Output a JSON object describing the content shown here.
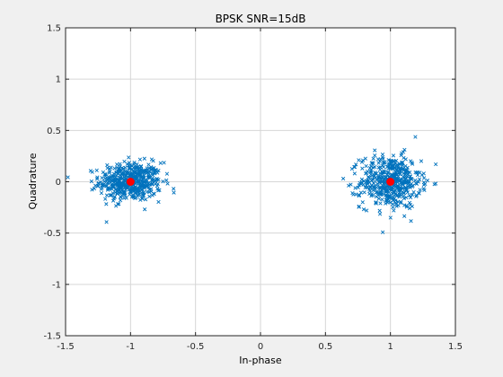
{
  "chart_data": {
    "type": "scatter",
    "title": "BPSK SNR=15dB",
    "xlabel": "In-phase",
    "ylabel": "Quadrature",
    "xlim": [
      -1.5,
      1.5
    ],
    "ylim": [
      -1.5,
      1.5
    ],
    "xticks": [
      -1.5,
      -1,
      -0.5,
      0,
      0.5,
      1,
      1.5
    ],
    "yticks": [
      -1.5,
      -1,
      -0.5,
      0,
      0.5,
      1,
      1.5
    ],
    "xtick_labels": [
      "-1.5",
      "-1",
      "-0.5",
      "0",
      "0.5",
      "1",
      "1.5"
    ],
    "ytick_labels": [
      "-1.5",
      "-1",
      "-0.5",
      "0",
      "0.5",
      "1",
      "1.5"
    ],
    "grid": true,
    "series": [
      {
        "marker": "x",
        "color": "#0072BD",
        "clusters": [
          {
            "center": [
              -1,
              0
            ],
            "x_spread": [
              -1.4,
              -0.66
            ],
            "y_spread": [
              -0.26,
              0.32
            ],
            "approx_count": 500
          },
          {
            "center": [
              1,
              0
            ],
            "x_spread": [
              0.63,
              1.35
            ],
            "y_spread": [
              -0.42,
              0.37
            ],
            "approx_count": 500
          }
        ]
      },
      {
        "marker": "o",
        "color": "#FF0000",
        "x": [
          -1,
          1
        ],
        "y": [
          0,
          0
        ]
      }
    ]
  }
}
